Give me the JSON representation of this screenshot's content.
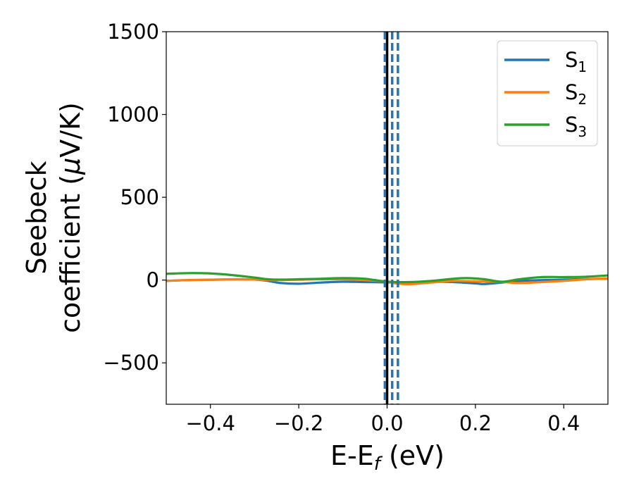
{
  "chart_data": {
    "type": "line",
    "xlabel": {
      "main": "E-E",
      "sub": "f",
      "tail": " (eV)"
    },
    "ylabel": {
      "line1": "Seebeck",
      "line2_pre": "coefficient  (",
      "line2_mu": "μ",
      "line2_post": "V/K)"
    },
    "xlim": [
      -0.5,
      0.5
    ],
    "ylim": [
      -750,
      1500
    ],
    "x_ticks": [
      -0.4,
      -0.2,
      0.0,
      0.2,
      0.4
    ],
    "x_tick_labels": [
      "−0.4",
      "−0.2",
      "0.0",
      "0.2",
      "0.4"
    ],
    "y_ticks": [
      -500,
      0,
      500,
      1000,
      1500
    ],
    "y_tick_labels": [
      "−500",
      "0",
      "500",
      "1000",
      "1500"
    ],
    "grid": false,
    "legend_position": "top-right",
    "series": [
      {
        "name": "S",
        "subscript": "1",
        "color": "#1f77b4",
        "x": [
          -0.5,
          -0.45,
          -0.4,
          -0.35,
          -0.3,
          -0.27,
          -0.24,
          -0.2,
          -0.15,
          -0.1,
          -0.05,
          0.0,
          0.05,
          0.1,
          0.15,
          0.2,
          0.22,
          0.26,
          0.3,
          0.35,
          0.4,
          0.45,
          0.5
        ],
        "y": [
          -5,
          0,
          2,
          4,
          3,
          -5,
          -18,
          -22,
          -15,
          -10,
          -12,
          -14,
          -15,
          -10,
          -12,
          -20,
          -24,
          -15,
          -5,
          0,
          3,
          6,
          8
        ]
      },
      {
        "name": "S",
        "subscript": "2",
        "color": "#ff7f0e",
        "x": [
          -0.5,
          -0.45,
          -0.4,
          -0.35,
          -0.3,
          -0.27,
          -0.24,
          -0.2,
          -0.15,
          -0.1,
          -0.05,
          0.0,
          0.02,
          0.05,
          0.1,
          0.15,
          0.2,
          0.25,
          0.3,
          0.35,
          0.4,
          0.45,
          0.5
        ],
        "y": [
          -5,
          0,
          2,
          4,
          3,
          0,
          0,
          2,
          5,
          5,
          0,
          -10,
          -20,
          -25,
          -15,
          -5,
          -8,
          -10,
          -18,
          -12,
          -5,
          5,
          10
        ]
      },
      {
        "name": "S",
        "subscript": "3",
        "color": "#2ca02c",
        "x": [
          -0.5,
          -0.45,
          -0.4,
          -0.35,
          -0.3,
          -0.27,
          -0.24,
          -0.2,
          -0.15,
          -0.1,
          -0.05,
          0.0,
          0.05,
          0.1,
          0.15,
          0.18,
          0.22,
          0.26,
          0.3,
          0.35,
          0.4,
          0.45,
          0.5
        ],
        "y": [
          38,
          42,
          40,
          30,
          15,
          5,
          3,
          5,
          8,
          12,
          8,
          -10,
          -12,
          -5,
          8,
          12,
          5,
          -10,
          5,
          18,
          18,
          20,
          28
        ]
      }
    ],
    "vertical_lines": [
      {
        "x": 0.0,
        "color": "#000000",
        "style": "solid"
      },
      {
        "x": -0.005,
        "color": "#1f77b4",
        "style": "dashed"
      },
      {
        "x": 0.0115,
        "color": "#1f77b4",
        "style": "dashed"
      },
      {
        "x": 0.0245,
        "color": "#1f77b4",
        "style": "dashed"
      }
    ]
  }
}
